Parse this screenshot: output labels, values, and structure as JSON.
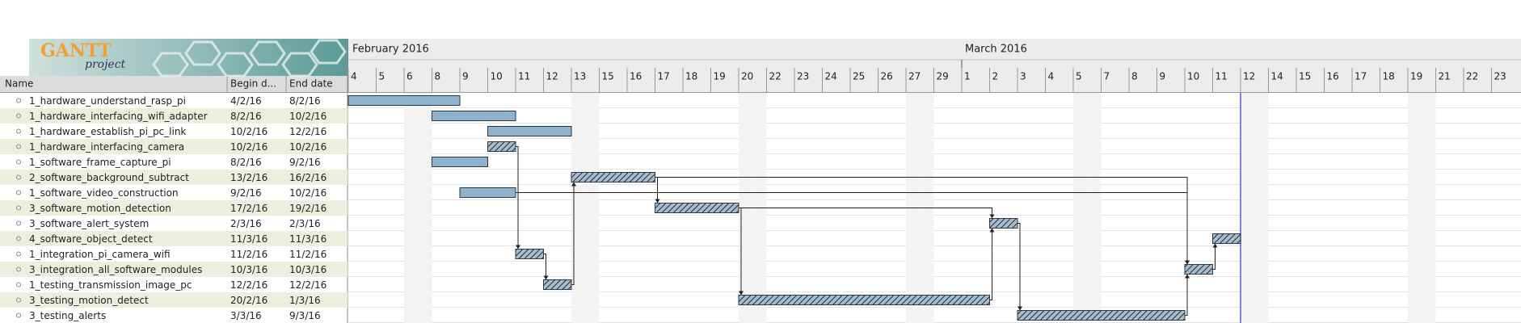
{
  "logo": {
    "title": "GANTT",
    "subtitle": "project"
  },
  "header": {
    "columns": [
      "Name",
      "Begin d...",
      "End date"
    ]
  },
  "timeline": {
    "months": [
      "February 2016",
      "March 2016"
    ],
    "days": [
      4,
      5,
      6,
      8,
      9,
      10,
      11,
      12,
      13,
      15,
      16,
      17,
      18,
      19,
      20,
      22,
      23,
      24,
      25,
      26,
      27,
      29,
      1,
      2,
      3,
      4,
      5,
      7,
      8,
      9,
      10,
      11,
      12,
      14,
      15,
      16,
      17,
      18,
      19,
      21,
      22,
      23
    ]
  },
  "tasks": [
    {
      "name": "1_hardware_understand_rasp_pi",
      "begin": "4/2/16",
      "end": "8/2/16",
      "critical": false
    },
    {
      "name": "1_hardware_interfacing_wifi_adapter",
      "begin": "8/2/16",
      "end": "10/2/16",
      "critical": false
    },
    {
      "name": "1_hardware_establish_pi_pc_link",
      "begin": "10/2/16",
      "end": "12/2/16",
      "critical": false
    },
    {
      "name": "1_hardware_interfacing_camera",
      "begin": "10/2/16",
      "end": "10/2/16",
      "critical": true
    },
    {
      "name": "1_software_frame_capture_pi",
      "begin": "8/2/16",
      "end": "9/2/16",
      "critical": false
    },
    {
      "name": "2_software_background_subtract",
      "begin": "13/2/16",
      "end": "16/2/16",
      "critical": true
    },
    {
      "name": "1_software_video_construction",
      "begin": "9/2/16",
      "end": "10/2/16",
      "critical": false
    },
    {
      "name": "3_software_motion_detection",
      "begin": "17/2/16",
      "end": "19/2/16",
      "critical": true
    },
    {
      "name": "3_software_alert_system",
      "begin": "2/3/16",
      "end": "2/3/16",
      "critical": true
    },
    {
      "name": "4_software_object_detect",
      "begin": "11/3/16",
      "end": "11/3/16",
      "critical": true
    },
    {
      "name": "1_integration_pi_camera_wifi",
      "begin": "11/2/16",
      "end": "11/2/16",
      "critical": true
    },
    {
      "name": "3_integration_all_software_modules",
      "begin": "10/3/16",
      "end": "10/3/16",
      "critical": true
    },
    {
      "name": "1_testing_transmission_image_pc",
      "begin": "12/2/16",
      "end": "12/2/16",
      "critical": true
    },
    {
      "name": "3_testing_motion_detect",
      "begin": "20/2/16",
      "end": "1/3/16",
      "critical": true
    },
    {
      "name": "3_testing_alerts",
      "begin": "3/3/16",
      "end": "9/3/16",
      "critical": true
    }
  ]
}
